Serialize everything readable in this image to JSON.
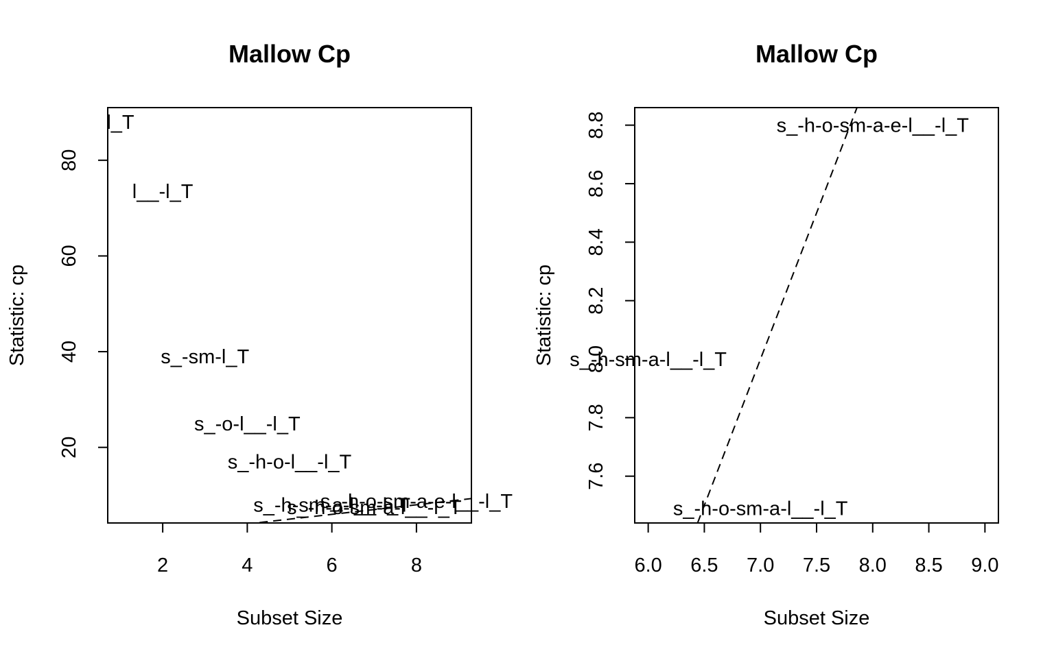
{
  "chart_data": [
    {
      "type": "scatter",
      "title": "Mallow Cp",
      "xlabel": "Subset Size",
      "ylabel": "Statistic: cp",
      "xlim": [
        0.7,
        9.3
      ],
      "ylim": [
        4.2,
        91.0
      ],
      "xticks": [
        "2",
        "4",
        "6",
        "8"
      ],
      "yticks": [
        "20",
        "40",
        "60",
        "80"
      ],
      "reference_line": {
        "x": [
          3.0,
          9.3
        ],
        "y": [
          3.0,
          9.3
        ]
      },
      "points": [
        {
          "x": 1,
          "y": 88.0,
          "label": "l_T"
        },
        {
          "x": 2,
          "y": 73.5,
          "label": "l__-l_T"
        },
        {
          "x": 3,
          "y": 39.0,
          "label": "s_-sm-l_T"
        },
        {
          "x": 4,
          "y": 25.0,
          "label": "s_-o-l__-l_T"
        },
        {
          "x": 5,
          "y": 17.0,
          "label": "s_-h-o-l__-l_T"
        },
        {
          "x": 6,
          "y": 8.0,
          "label": "s_-h-sm-a-l__-l_T"
        },
        {
          "x": 7,
          "y": 7.5,
          "label": "s_-h-o-sm-a-l__-l_T"
        },
        {
          "x": 8,
          "y": 8.8,
          "label": "s_-h-o-sm-a-e-l__-l_T"
        }
      ]
    },
    {
      "type": "scatter",
      "title": "Mallow Cp",
      "xlabel": "Subset Size",
      "ylabel": "Statistic: cp",
      "xlim": [
        5.88,
        9.12
      ],
      "ylim": [
        7.44,
        8.86
      ],
      "xticks": [
        "6.0",
        "6.5",
        "7.0",
        "7.5",
        "8.0",
        "8.5",
        "9.0"
      ],
      "yticks": [
        "7.6",
        "7.8",
        "8.0",
        "8.2",
        "8.4",
        "8.6",
        "8.8"
      ],
      "reference_line": {
        "x": [
          6.44,
          7.86
        ],
        "y": [
          7.44,
          8.86
        ]
      },
      "points": [
        {
          "x": 6,
          "y": 8.0,
          "label": "s_-h-sm-a-l__-l_T"
        },
        {
          "x": 7,
          "y": 7.49,
          "label": "s_-h-o-sm-a-l__-l_T"
        },
        {
          "x": 8,
          "y": 8.8,
          "label": "s_-h-o-sm-a-e-l__-l_T"
        }
      ]
    }
  ]
}
